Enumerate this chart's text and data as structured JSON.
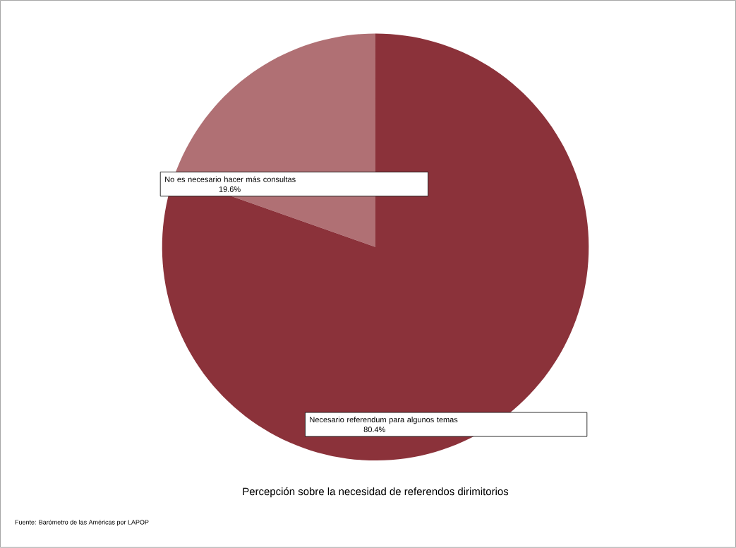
{
  "chart_data": {
    "type": "pie",
    "title": "Percepción sobre la necesidad de referendos dirimitorios",
    "categories": [
      "No es necesario hacer más consultas",
      "Necesario referendum para algunos temas"
    ],
    "values": [
      19.6,
      80.4
    ],
    "colors": [
      "#b07074",
      "#8b323a"
    ],
    "value_labels": [
      "19.6%",
      "80.4%"
    ],
    "annotations": [
      "Fuente: Barómetro de las Américas por LAPOP"
    ]
  }
}
